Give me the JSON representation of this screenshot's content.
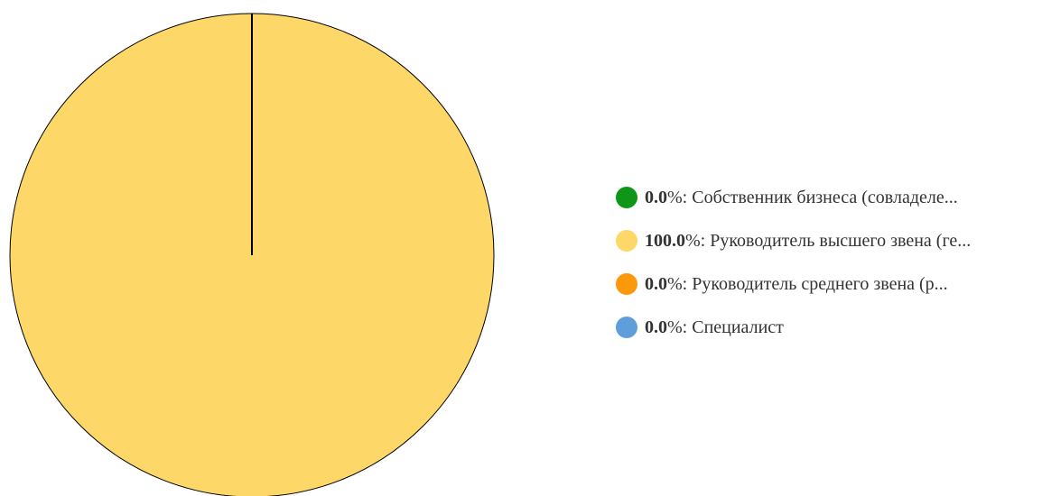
{
  "chart_data": {
    "type": "pie",
    "title": "",
    "slices": [
      {
        "label": "Собственник бизнеса (совладеле...",
        "value": 0.0,
        "color": "#0f9618"
      },
      {
        "label": "Руководитель высшего звена (ге...",
        "value": 100.0,
        "color": "#fdd868"
      },
      {
        "label": "Руководитель среднего звена (р...",
        "value": 0.0,
        "color": "#fc990b"
      },
      {
        "label": "Специалист",
        "value": 0.0,
        "color": "#5f9edb"
      }
    ],
    "percent_labels": [
      "0.0",
      "100.0",
      "0.0",
      "0.0"
    ],
    "percent_sign": "%",
    "separator": ": ",
    "legend_position": "right",
    "slice_border_color": "#000000"
  }
}
